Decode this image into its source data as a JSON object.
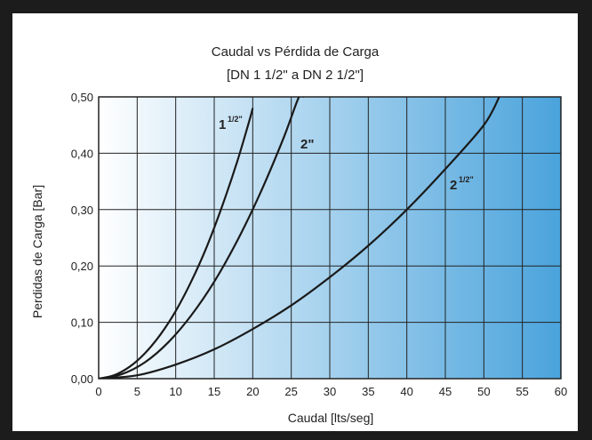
{
  "chart_data": {
    "type": "line",
    "title": "Caudal vs Pérdida de Carga",
    "subtitle": "[DN 1 1/2\" a DN 2 1/2\"]",
    "xlabel": "Caudal [lts/seg]",
    "ylabel": "Perdidas de Carga [Bar]",
    "xlim": [
      0,
      60
    ],
    "ylim": [
      0,
      0.5
    ],
    "x_ticks": [
      "0",
      "5",
      "10",
      "15",
      "20",
      "25",
      "30",
      "35",
      "40",
      "45",
      "50",
      "55",
      "60"
    ],
    "y_ticks": [
      "0,00",
      "0,10",
      "0,20",
      "0,30",
      "0,40",
      "0,50"
    ],
    "grid": true,
    "background_gradient": [
      "#ffffff",
      "#4aa3dc"
    ],
    "series": [
      {
        "name": "1 1/2\"",
        "label_main": "1",
        "label_sup": "1/2\"",
        "color": "#1a1a1a",
        "x": [
          0,
          2,
          4,
          6,
          8,
          10,
          12,
          14,
          16,
          18,
          19.5,
          20
        ],
        "y": [
          0,
          0.006,
          0.021,
          0.045,
          0.078,
          0.12,
          0.172,
          0.233,
          0.305,
          0.386,
          0.455,
          0.48
        ]
      },
      {
        "name": "2\"",
        "label_main": "2\"",
        "label_sup": "",
        "color": "#1a1a1a",
        "x": [
          0,
          3,
          6,
          9,
          12,
          15,
          18,
          21,
          24,
          26,
          26.6
        ],
        "y": [
          0,
          0.008,
          0.029,
          0.064,
          0.112,
          0.172,
          0.245,
          0.33,
          0.427,
          0.5,
          0.5
        ]
      },
      {
        "name": "2 1/2\"",
        "label_main": "2",
        "label_sup": "1/2\"",
        "color": "#1a1a1a",
        "x": [
          0,
          5,
          10,
          15,
          20,
          25,
          30,
          35,
          40,
          45,
          50,
          52
        ],
        "y": [
          0,
          0.006,
          0.025,
          0.052,
          0.088,
          0.13,
          0.18,
          0.236,
          0.3,
          0.372,
          0.45,
          0.5
        ]
      }
    ]
  }
}
